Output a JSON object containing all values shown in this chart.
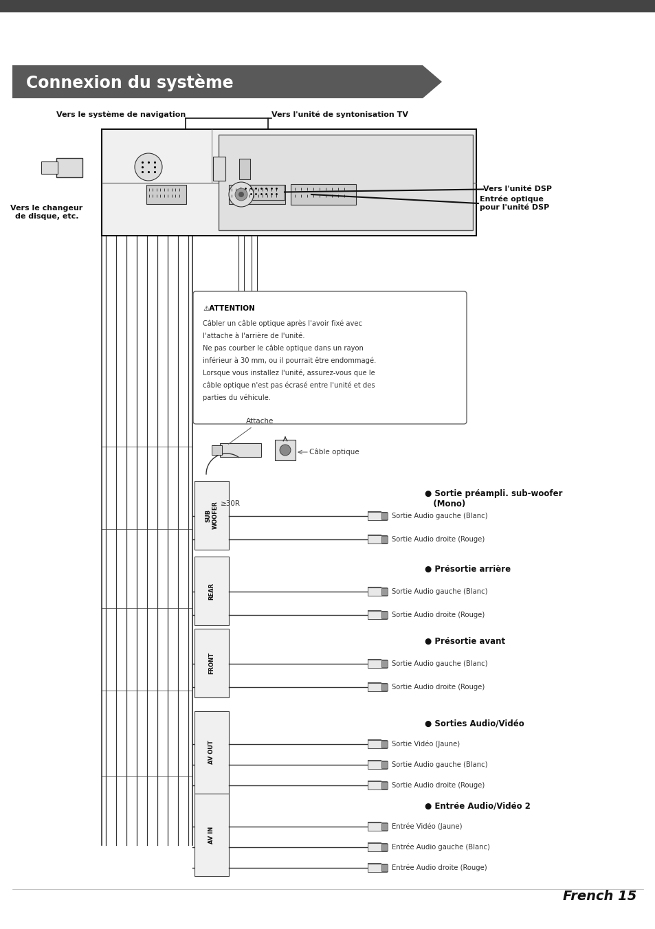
{
  "page_title": "Connexion du système",
  "page_number": "French 15",
  "bg_color": "#ffffff",
  "title_bg_color": "#595959",
  "title_text_color": "#ffffff",
  "title_fontsize": 17,
  "body_fontsize": 8.0,
  "small_fontsize": 7.2,
  "attention_title": "⚠ATTENTION",
  "attention_lines": [
    "Câbler un câble optique après l'avoir fixé avec",
    "l'attache à l'arrière de l'unité.",
    "Ne pas courber le câble optique dans un rayon",
    "inférieur à 30 mm, ou il pourrait être endommagé.",
    "Lorsque vous installez l'unité, assurez-vous que le",
    "câble optique n'est pas écrasé entre l'unité et des",
    "parties du véhicule."
  ],
  "connector_groups": [
    {
      "label": "SUB\nWOOFER",
      "bullet": "● Sortie préampli. sub-woofer\n   (Mono)",
      "connectors": [
        "Sortie Audio gauche (Blanc)",
        "Sortie Audio droite (Rouge)"
      ]
    },
    {
      "label": "REAR",
      "bullet": "● Présortie arrière",
      "connectors": [
        "Sortie Audio gauche (Blanc)",
        "Sortie Audio droite (Rouge)"
      ]
    },
    {
      "label": "FRONT",
      "bullet": "● Présortie avant",
      "connectors": [
        "Sortie Audio gauche (Blanc)",
        "Sortie Audio droite (Rouge)"
      ]
    },
    {
      "label": "AV OUT",
      "bullet": "● Sorties Audio/Vidéo",
      "connectors": [
        "Sortie Vidéo (Jaune)",
        "Sortie Audio gauche (Blanc)",
        "Sortie Audio droite (Rouge)"
      ]
    },
    {
      "label": "AV IN",
      "bullet": "● Entrée Audio/Vidéo 2",
      "connectors": [
        "Entrée Vidéo (Jaune)",
        "Entrée Audio gauche (Blanc)",
        "Entrée Audio droite (Rouge)"
      ]
    }
  ]
}
